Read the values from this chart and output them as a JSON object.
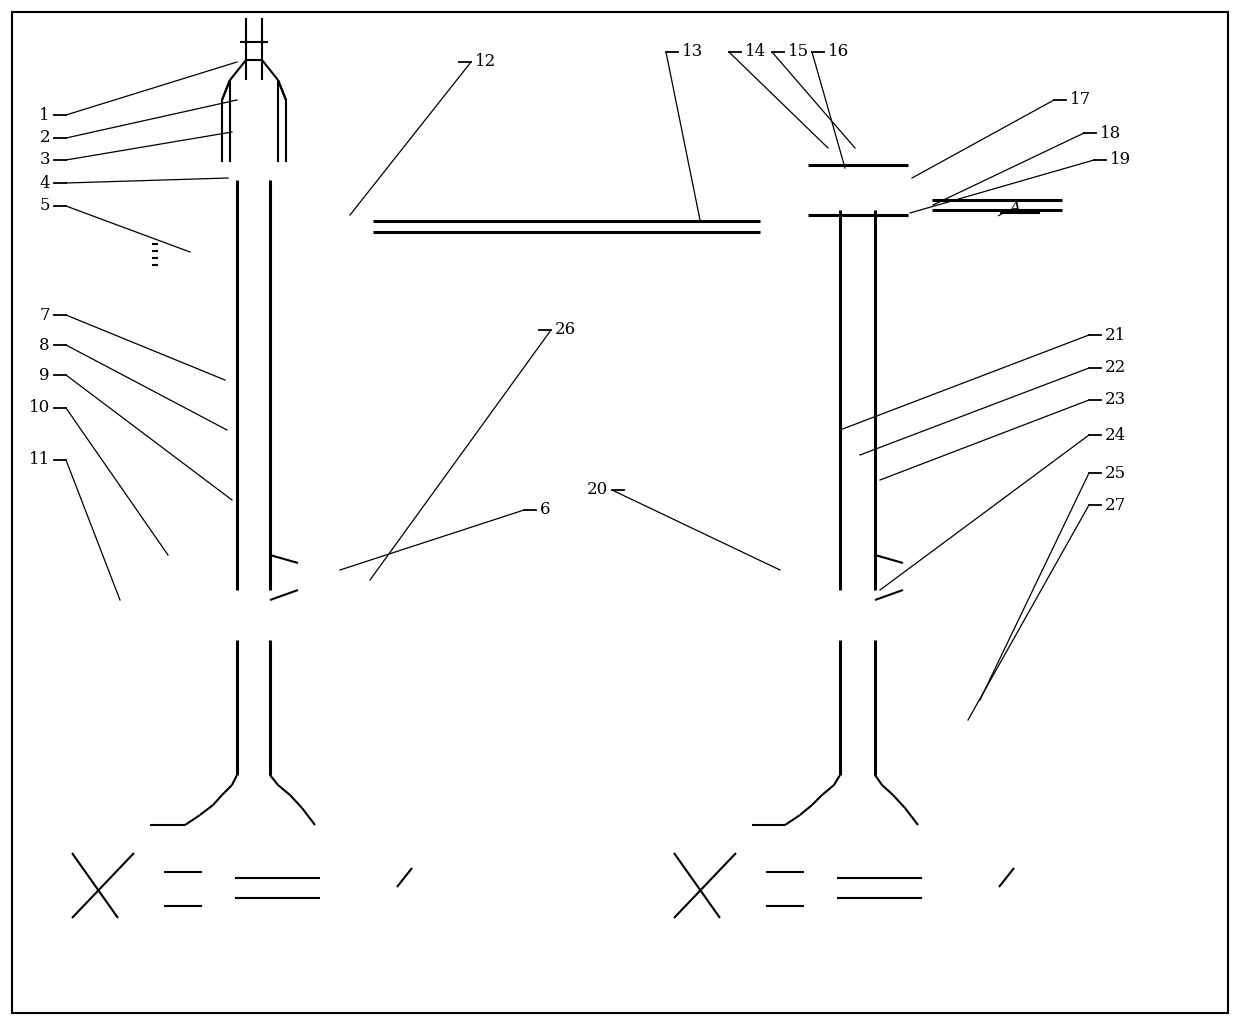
{
  "bg_color": "#ffffff",
  "line_color": "#000000",
  "lw": 1.5,
  "tlw": 2.2,
  "fig_width": 12.4,
  "fig_height": 10.25
}
